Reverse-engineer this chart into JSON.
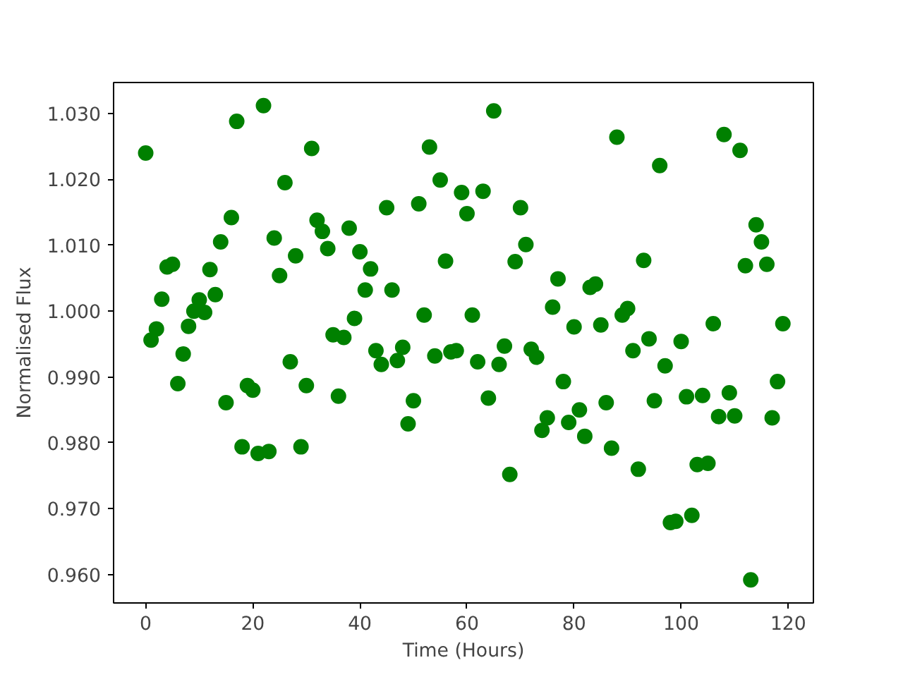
{
  "chart_data": {
    "type": "scatter",
    "xlabel": "Time (Hours)",
    "ylabel": "Normalised Flux",
    "marker": "circle",
    "grid": false,
    "x": [
      0,
      1,
      2,
      3,
      4,
      5,
      6,
      7,
      8,
      9,
      10,
      11,
      12,
      13,
      14,
      15,
      16,
      17,
      18,
      19,
      20,
      21,
      22,
      23,
      24,
      25,
      26,
      27,
      28,
      29,
      30,
      31,
      32,
      33,
      34,
      35,
      36,
      37,
      38,
      39,
      40,
      41,
      42,
      43,
      44,
      45,
      46,
      47,
      48,
      49,
      50,
      51,
      52,
      53,
      54,
      55,
      56,
      57,
      58,
      59,
      60,
      61,
      62,
      63,
      64,
      65,
      66,
      67,
      68,
      69,
      70,
      71,
      72,
      73,
      74,
      75,
      76,
      77,
      78,
      79,
      80,
      81,
      82,
      83,
      84,
      85,
      86,
      87,
      88,
      89,
      90,
      91,
      92,
      93,
      94,
      95,
      96,
      97,
      98,
      99,
      100,
      101,
      102,
      103,
      104,
      105,
      106,
      107,
      108,
      109,
      110,
      111,
      112,
      113,
      114,
      115,
      116,
      117,
      118,
      119
    ],
    "series": [
      {
        "color": "#008000",
        "values": [
          1.024,
          0.9956,
          0.9973,
          1.0018,
          1.0067,
          1.0071,
          0.989,
          0.9935,
          0.9977,
          1.0,
          1.0017,
          0.9998,
          1.0063,
          1.0025,
          1.0105,
          0.9861,
          1.0142,
          1.0288,
          0.9794,
          0.9887,
          0.988,
          0.9784,
          1.0312,
          0.9787,
          1.0111,
          1.0054,
          1.0195,
          0.9923,
          1.0084,
          0.9794,
          0.9887,
          1.0247,
          1.0138,
          1.0121,
          1.0095,
          0.9964,
          0.9871,
          0.996,
          1.0126,
          0.9989,
          1.009,
          1.0032,
          1.0064,
          0.994,
          0.9919,
          1.0157,
          1.0032,
          0.9925,
          0.9945,
          0.9829,
          0.9864,
          1.0163,
          0.9994,
          1.0249,
          0.9932,
          1.0199,
          1.0076,
          0.9938,
          0.994,
          1.018,
          1.0148,
          0.9994,
          0.9923,
          1.0182,
          0.9868,
          1.0304,
          0.9919,
          0.9947,
          0.9752,
          1.0075,
          1.0157,
          1.0101,
          0.9942,
          0.993,
          0.9819,
          0.9838,
          1.0006,
          1.0049,
          0.9893,
          0.9831,
          0.9976,
          0.985,
          0.981,
          1.0036,
          1.0041,
          0.9979,
          0.9861,
          0.9792,
          1.0264,
          0.9994,
          1.0004,
          0.994,
          0.976,
          1.0077,
          0.9958,
          0.9864,
          1.0221,
          0.9917,
          0.9679,
          0.9681,
          0.9954,
          0.987,
          0.969,
          0.9767,
          0.9872,
          0.9769,
          0.9981,
          0.984,
          1.0268,
          0.9876,
          0.9841,
          1.0244,
          1.0069,
          0.9592,
          1.0131,
          1.0105,
          1.0071,
          0.9838,
          0.9893,
          0.9981
        ]
      }
    ],
    "xlim": [
      -6,
      124.7
    ],
    "ylim": [
      0.9557,
      1.0347
    ],
    "xticks": [
      0,
      20,
      40,
      60,
      80,
      100,
      120
    ],
    "yticks": [
      {
        "value": 0.96,
        "label": "0.960"
      },
      {
        "value": 0.97,
        "label": "0.970"
      },
      {
        "value": 0.98,
        "label": "0.980"
      },
      {
        "value": 0.99,
        "label": "0.990"
      },
      {
        "value": 1.0,
        "label": "1.000"
      },
      {
        "value": 1.01,
        "label": "1.010"
      },
      {
        "value": 1.02,
        "label": "1.020"
      },
      {
        "value": 1.03,
        "label": "1.030"
      }
    ]
  }
}
